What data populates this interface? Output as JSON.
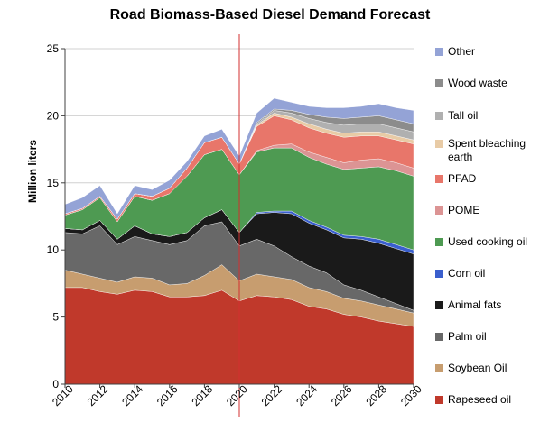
{
  "chart_data": {
    "type": "area",
    "stacked": true,
    "title": "Road Biomass-Based Diesel Demand Forecast",
    "xlabel": "",
    "ylabel": "Million liters",
    "xlim": [
      2010,
      2030
    ],
    "ylim": [
      0,
      25
    ],
    "x_ticks": [
      "2010",
      "2012",
      "2014",
      "2016",
      "2018",
      "2020",
      "2022",
      "2024",
      "2026",
      "2028",
      "2030"
    ],
    "y_ticks": [
      "0",
      "5",
      "10",
      "15",
      "20",
      "25"
    ],
    "grid": "horizontal",
    "legend_position": "right",
    "reference_line": {
      "x": 2020,
      "color": "#d32f2f"
    },
    "x": [
      2010,
      2011,
      2012,
      2013,
      2014,
      2015,
      2016,
      2017,
      2018,
      2019,
      2020,
      2021,
      2022,
      2023,
      2024,
      2025,
      2026,
      2027,
      2028,
      2029,
      2030
    ],
    "series": [
      {
        "name": "Rapeseed oil",
        "color": "#c0392b",
        "values": [
          7.2,
          7.2,
          6.9,
          6.7,
          7.0,
          6.9,
          6.5,
          6.5,
          6.6,
          7.0,
          6.2,
          6.6,
          6.5,
          6.3,
          5.8,
          5.6,
          5.2,
          5.0,
          4.7,
          4.5,
          4.3
        ]
      },
      {
        "name": "Soybean Oil",
        "color": "#c79d6f",
        "values": [
          1.3,
          1.0,
          1.0,
          0.9,
          1.0,
          1.0,
          0.9,
          1.0,
          1.5,
          1.9,
          1.5,
          1.6,
          1.5,
          1.5,
          1.4,
          1.3,
          1.2,
          1.2,
          1.2,
          1.1,
          1.0
        ]
      },
      {
        "name": "Palm oil",
        "color": "#686868",
        "values": [
          2.8,
          3.0,
          3.9,
          2.8,
          3.0,
          2.8,
          3.0,
          3.2,
          3.7,
          3.2,
          2.6,
          2.6,
          2.3,
          1.7,
          1.6,
          1.4,
          1.0,
          0.8,
          0.6,
          0.4,
          0.2
        ]
      },
      {
        "name": "Animal fats",
        "color": "#1a1a1a",
        "values": [
          0.3,
          0.3,
          0.4,
          0.4,
          0.8,
          0.5,
          0.6,
          0.6,
          0.6,
          0.9,
          1.0,
          1.9,
          2.5,
          3.2,
          3.2,
          3.2,
          3.5,
          3.8,
          4.0,
          4.1,
          4.2
        ]
      },
      {
        "name": "Corn oil",
        "color": "#3a5fcd",
        "values": [
          0.0,
          0.0,
          0.0,
          0.0,
          0.0,
          0.0,
          0.0,
          0.0,
          0.0,
          0.0,
          0.0,
          0.1,
          0.1,
          0.2,
          0.2,
          0.2,
          0.2,
          0.2,
          0.3,
          0.3,
          0.3
        ]
      },
      {
        "name": "Used cooking oil",
        "color": "#4e9a52",
        "values": [
          1.0,
          1.5,
          1.7,
          1.3,
          2.2,
          2.5,
          3.2,
          4.2,
          4.7,
          4.5,
          4.3,
          4.5,
          4.7,
          4.7,
          4.7,
          4.7,
          4.9,
          5.1,
          5.4,
          5.5,
          5.5
        ]
      },
      {
        "name": "POME",
        "color": "#dc9494",
        "values": [
          0.0,
          0.0,
          0.0,
          0.0,
          0.0,
          0.0,
          0.0,
          0.0,
          0.0,
          0.0,
          0.0,
          0.1,
          0.2,
          0.3,
          0.4,
          0.5,
          0.5,
          0.6,
          0.6,
          0.6,
          0.6
        ]
      },
      {
        "name": "PFAD",
        "color": "#e8766a",
        "values": [
          0.1,
          0.1,
          0.1,
          0.2,
          0.2,
          0.3,
          0.4,
          0.6,
          0.9,
          0.9,
          0.8,
          1.8,
          2.2,
          1.8,
          1.8,
          1.8,
          1.9,
          1.8,
          1.7,
          1.7,
          1.8
        ]
      },
      {
        "name": "Spent bleaching earth",
        "color": "#e8cba6",
        "values": [
          0.0,
          0.0,
          0.0,
          0.0,
          0.0,
          0.0,
          0.0,
          0.0,
          0.0,
          0.0,
          0.0,
          0.1,
          0.2,
          0.2,
          0.3,
          0.3,
          0.3,
          0.3,
          0.3,
          0.3,
          0.3
        ]
      },
      {
        "name": "Tall oil",
        "color": "#b0b0b0",
        "values": [
          0.0,
          0.0,
          0.0,
          0.0,
          0.0,
          0.0,
          0.0,
          0.0,
          0.0,
          0.0,
          0.0,
          0.1,
          0.2,
          0.3,
          0.4,
          0.5,
          0.6,
          0.6,
          0.6,
          0.6,
          0.6
        ]
      },
      {
        "name": "Wood waste",
        "color": "#8c8c8c",
        "values": [
          0.0,
          0.0,
          0.0,
          0.0,
          0.0,
          0.0,
          0.0,
          0.0,
          0.0,
          0.0,
          0.0,
          0.1,
          0.1,
          0.2,
          0.3,
          0.4,
          0.5,
          0.5,
          0.6,
          0.6,
          0.6
        ]
      },
      {
        "name": "Other",
        "color": "#94a3d6",
        "values": [
          0.7,
          0.8,
          0.8,
          0.4,
          0.6,
          0.5,
          0.6,
          0.5,
          0.5,
          0.6,
          0.6,
          0.7,
          0.8,
          0.6,
          0.6,
          0.7,
          0.8,
          0.8,
          0.9,
          0.9,
          1.0
        ]
      }
    ]
  }
}
